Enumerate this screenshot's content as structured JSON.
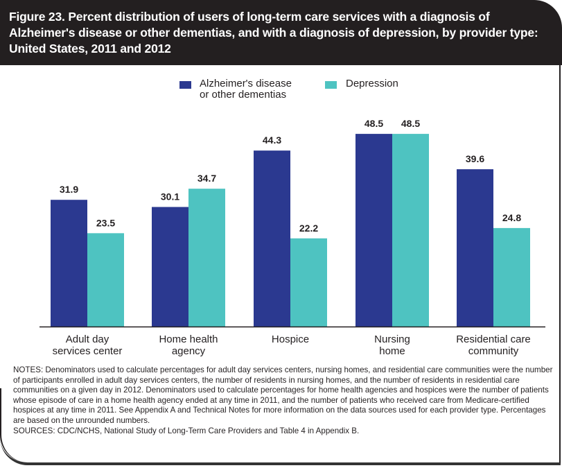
{
  "title": "Figure 23. Percent distribution of users of long-term care services with a diagnosis of Alzheimer's disease or other dementias, and with a diagnosis of depression, by provider type: United States, 2011 and 2012",
  "notes": "NOTES: Denominators used to calculate percentages for adult day services centers, nursing homes, and residential care communities were the number of participants enrolled in adult day services centers, the number of residents in nursing homes, and the number of residents in residential care communities on a given day in 2012. Denominators used to calculate percentages for home health agencies and hospices were the number of patients whose episode of care in a home health agency ended at any time in 2011, and the number of patients who received care from Medicare-certified hospices at any time in 2011. See Appendix A and Technical Notes for more information on the data sources used for each provider type. Percentages are based on the unrounded numbers.",
  "sources": "SOURCES: CDC/NCHS, National Study of Long-Term Care Providers and Table 4 in Appendix B.",
  "chart_data": {
    "type": "bar",
    "title": "Figure 23. Percent distribution of users of long-term care services with a diagnosis of Alzheimer's disease or other dementias, and with a diagnosis of depression, by provider type: United States, 2011 and 2012",
    "categories": [
      [
        "Adult day",
        "services center"
      ],
      [
        "Home health",
        "agency"
      ],
      [
        "Hospice"
      ],
      [
        "Nursing",
        "home"
      ],
      [
        "Residential care",
        "community"
      ]
    ],
    "series": [
      {
        "name": "Alzheimer's disease or other dementias",
        "name_lines": [
          "Alzheimer's disease",
          "or other dementias"
        ],
        "color": "#2b3990",
        "values": [
          31.9,
          30.1,
          44.3,
          48.5,
          39.6
        ],
        "labels": [
          "31.9",
          "30.1",
          "44.3",
          "48.5",
          "39.6"
        ]
      },
      {
        "name": "Depression",
        "name_lines": [
          "Depression"
        ],
        "color": "#4ec3c1",
        "values": [
          23.5,
          34.7,
          22.2,
          48.5,
          24.8
        ],
        "labels": [
          "23.5",
          "34.7",
          "22.2",
          "48.5",
          "24.8"
        ]
      }
    ],
    "ylim": [
      0,
      50
    ],
    "grid": false,
    "legend": "top-center",
    "xlabel": "",
    "ylabel": ""
  }
}
